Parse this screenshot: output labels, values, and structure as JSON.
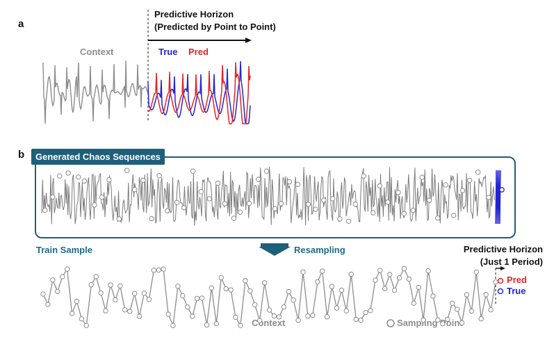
{
  "panel_a": {
    "label": "a",
    "horizon_title_line1": "Predictive Horizon",
    "horizon_title_line2": "(Predicted by Point to Point)",
    "context_label": "Context",
    "true_label": "True",
    "pred_label": "Pred"
  },
  "panel_b": {
    "label": "b",
    "generated_title": "Generated Chaos Sequences",
    "train_sample_label": "Train Sample",
    "resampling_label": "Resampling",
    "horizon_title_line1": "Predictive Horizon",
    "horizon_title_line2": "(Just 1 Period)",
    "pred_label": "Pred",
    "true_label": "True",
    "context_label": "Context",
    "sampling_point_label": "Sampling Point"
  },
  "colors": {
    "context": "#8c8c8c",
    "true": "#2323d6",
    "pred": "#e52222",
    "accent": "#1e5f79"
  }
}
